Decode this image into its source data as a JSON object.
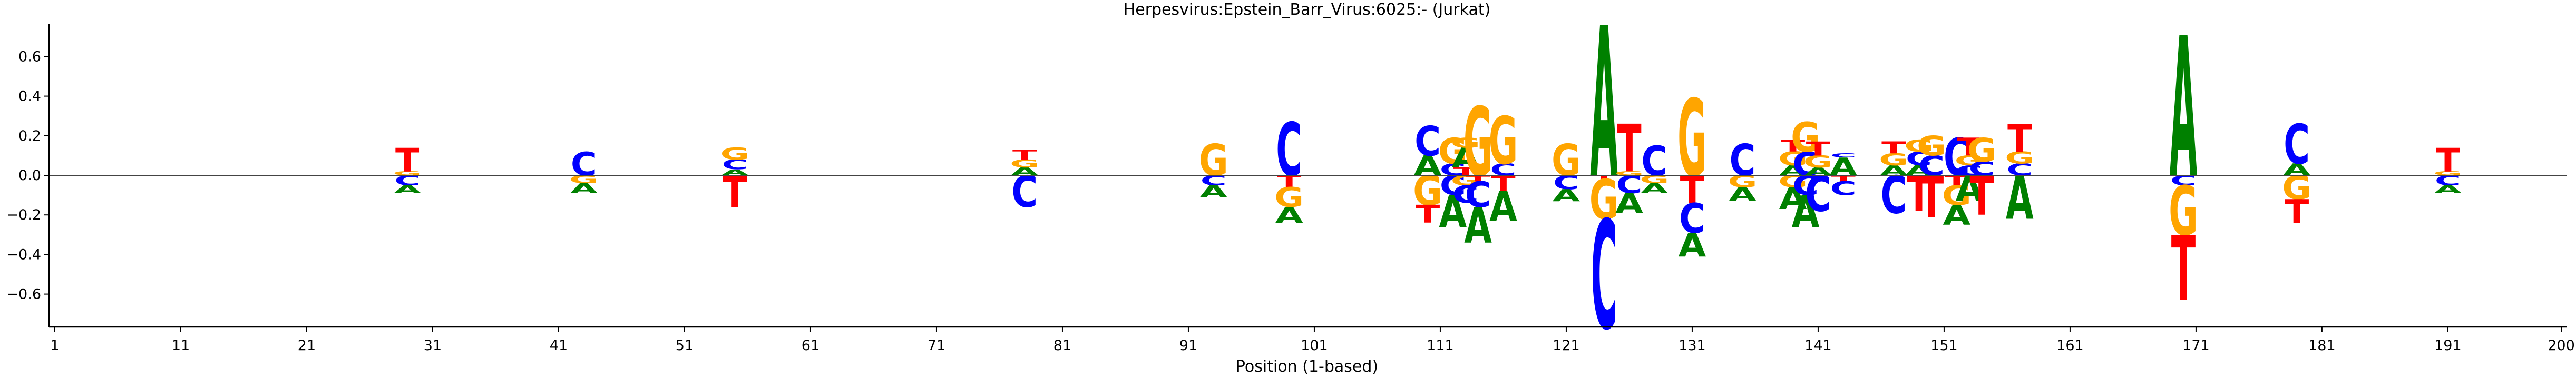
{
  "chart_data": {
    "type": "sequence-logo",
    "title": "Herpesvirus:Epstein_Barr_Virus:6025:-  (Jurkat)",
    "xlabel": "Position (1-based)",
    "ylabel": "",
    "xlim": [
      1,
      200
    ],
    "ylim": [
      -0.78,
      0.78
    ],
    "x_ticks": [
      1,
      11,
      21,
      31,
      41,
      51,
      61,
      71,
      81,
      91,
      101,
      111,
      121,
      131,
      141,
      151,
      161,
      171,
      181,
      191,
      200
    ],
    "y_ticks": [
      -0.6,
      -0.4,
      -0.2,
      0.0,
      0.2,
      0.4,
      0.6
    ],
    "y_tick_labels": [
      "−0.6",
      "−0.4",
      "−0.2",
      "0.0",
      "0.2",
      "0.4",
      "0.6"
    ],
    "grid": false,
    "baseline": 0,
    "colors": {
      "A": "#008000",
      "C": "#0000ff",
      "G": "#ffa500",
      "T": "#ff0000"
    },
    "positions": [
      {
        "pos": 29,
        "up": [
          [
            "G",
            0.02
          ],
          [
            "T",
            0.12
          ]
        ],
        "down": [
          [
            "C",
            0.05
          ],
          [
            "A",
            0.04
          ]
        ]
      },
      {
        "pos": 43,
        "up": [
          [
            "C",
            0.12
          ]
        ],
        "down": [
          [
            "G",
            0.04
          ],
          [
            "A",
            0.05
          ]
        ]
      },
      {
        "pos": 55,
        "up": [
          [
            "A",
            0.03
          ],
          [
            "C",
            0.05
          ],
          [
            "G",
            0.06
          ]
        ],
        "down": [
          [
            "T",
            0.16
          ]
        ]
      },
      {
        "pos": 78,
        "up": [
          [
            "A",
            0.04
          ],
          [
            "G",
            0.04
          ],
          [
            "T",
            0.05
          ]
        ],
        "down": [
          [
            "C",
            0.16
          ]
        ]
      },
      {
        "pos": 93,
        "up": [
          [
            "G",
            0.16
          ]
        ],
        "down": [
          [
            "C",
            0.05
          ],
          [
            "A",
            0.06
          ]
        ]
      },
      {
        "pos": 99,
        "up": [
          [
            "C",
            0.27
          ]
        ],
        "down": [
          [
            "T",
            0.06
          ],
          [
            "G",
            0.1
          ],
          [
            "A",
            0.08
          ]
        ]
      },
      {
        "pos": 110,
        "up": [
          [
            "A",
            0.1
          ],
          [
            "C",
            0.15
          ]
        ],
        "down": [
          [
            "G",
            0.15
          ],
          [
            "T",
            0.09
          ]
        ]
      },
      {
        "pos": 112,
        "up": [
          [
            "C",
            0.06
          ],
          [
            "G",
            0.13
          ]
        ],
        "down": [
          [
            "C",
            0.1
          ],
          [
            "A",
            0.16
          ]
        ]
      },
      {
        "pos": 113,
        "up": [
          [
            "T",
            0.04
          ],
          [
            "A",
            0.1
          ],
          [
            "G",
            0.05
          ]
        ],
        "down": [
          [
            "G",
            0.05
          ],
          [
            "C",
            0.09
          ]
        ]
      },
      {
        "pos": 114,
        "up": [
          [
            "G",
            0.35
          ]
        ],
        "down": [
          [
            "T",
            0.03
          ],
          [
            "C",
            0.13
          ],
          [
            "A",
            0.18
          ]
        ]
      },
      {
        "pos": 116,
        "up": [
          [
            "C",
            0.06
          ],
          [
            "G",
            0.24
          ]
        ],
        "down": [
          [
            "T",
            0.08
          ],
          [
            "A",
            0.15
          ]
        ]
      },
      {
        "pos": 121,
        "up": [
          [
            "G",
            0.16
          ]
        ],
        "down": [
          [
            "C",
            0.07
          ],
          [
            "A",
            0.06
          ]
        ]
      },
      {
        "pos": 124,
        "up": [
          [
            "A",
            0.76
          ]
        ],
        "down": [
          [
            "T",
            0.02
          ],
          [
            "G",
            0.2
          ],
          [
            "C",
            0.55
          ]
        ]
      },
      {
        "pos": 126,
        "up": [
          [
            "G",
            0.02
          ],
          [
            "T",
            0.24
          ]
        ],
        "down": [
          [
            "C",
            0.09
          ],
          [
            "A",
            0.1
          ]
        ]
      },
      {
        "pos": 128,
        "up": [
          [
            "C",
            0.15
          ]
        ],
        "down": [
          [
            "G",
            0.04
          ],
          [
            "A",
            0.05
          ]
        ]
      },
      {
        "pos": 131,
        "up": [
          [
            "G",
            0.39
          ]
        ],
        "down": [
          [
            "T",
            0.14
          ],
          [
            "C",
            0.15
          ],
          [
            "A",
            0.12
          ]
        ]
      },
      {
        "pos": 135,
        "up": [
          [
            "C",
            0.16
          ]
        ],
        "down": [
          [
            "G",
            0.06
          ],
          [
            "A",
            0.07
          ]
        ]
      },
      {
        "pos": 139,
        "up": [
          [
            "A",
            0.05
          ],
          [
            "G",
            0.07
          ],
          [
            "T",
            0.06
          ]
        ],
        "down": [
          [
            "G",
            0.06
          ],
          [
            "A",
            0.11
          ]
        ]
      },
      {
        "pos": 140,
        "up": [
          [
            "C",
            0.12
          ],
          [
            "G",
            0.15
          ]
        ],
        "down": [
          [
            "C",
            0.1
          ],
          [
            "A",
            0.16
          ]
        ]
      },
      {
        "pos": 141,
        "up": [
          [
            "A",
            0.04
          ],
          [
            "G",
            0.06
          ],
          [
            "T",
            0.07
          ]
        ],
        "down": [
          [
            "C",
            0.18
          ]
        ]
      },
      {
        "pos": 143,
        "up": [
          [
            "A",
            0.09
          ],
          [
            "C",
            0.02
          ]
        ],
        "down": [
          [
            "T",
            0.03
          ],
          [
            "C",
            0.07
          ]
        ]
      },
      {
        "pos": 147,
        "up": [
          [
            "A",
            0.05
          ],
          [
            "G",
            0.06
          ],
          [
            "T",
            0.06
          ]
        ],
        "down": [
          [
            "C",
            0.19
          ]
        ]
      },
      {
        "pos": 149,
        "up": [
          [
            "A",
            0.05
          ],
          [
            "C",
            0.07
          ],
          [
            "G",
            0.06
          ]
        ],
        "down": [
          [
            "T",
            0.18
          ]
        ]
      },
      {
        "pos": 150,
        "up": [
          [
            "C",
            0.1
          ],
          [
            "G",
            0.1
          ]
        ],
        "down": [
          [
            "T",
            0.21
          ]
        ]
      },
      {
        "pos": 152,
        "up": [
          [
            "C",
            0.19
          ]
        ],
        "down": [
          [
            "T",
            0.05
          ],
          [
            "G",
            0.1
          ],
          [
            "A",
            0.1
          ]
        ]
      },
      {
        "pos": 153,
        "up": [
          [
            "C",
            0.05
          ],
          [
            "G",
            0.05
          ],
          [
            "T",
            0.09
          ]
        ],
        "down": [
          [
            "A",
            0.13
          ]
        ]
      },
      {
        "pos": 154,
        "up": [
          [
            "C",
            0.07
          ],
          [
            "G",
            0.12
          ]
        ],
        "down": [
          [
            "T",
            0.2
          ]
        ]
      },
      {
        "pos": 157,
        "up": [
          [
            "C",
            0.06
          ],
          [
            "G",
            0.06
          ],
          [
            "T",
            0.14
          ]
        ],
        "down": [
          [
            "A",
            0.22
          ]
        ]
      },
      {
        "pos": 170,
        "up": [
          [
            "A",
            0.71
          ]
        ],
        "down": [
          [
            "C",
            0.05
          ],
          [
            "G",
            0.25
          ],
          [
            "T",
            0.33
          ]
        ]
      },
      {
        "pos": 179,
        "up": [
          [
            "A",
            0.06
          ],
          [
            "C",
            0.2
          ]
        ],
        "down": [
          [
            "G",
            0.12
          ],
          [
            "T",
            0.12
          ]
        ]
      },
      {
        "pos": 191,
        "up": [
          [
            "G",
            0.02
          ],
          [
            "T",
            0.12
          ]
        ],
        "down": [
          [
            "C",
            0.05
          ],
          [
            "A",
            0.04
          ]
        ]
      }
    ]
  }
}
